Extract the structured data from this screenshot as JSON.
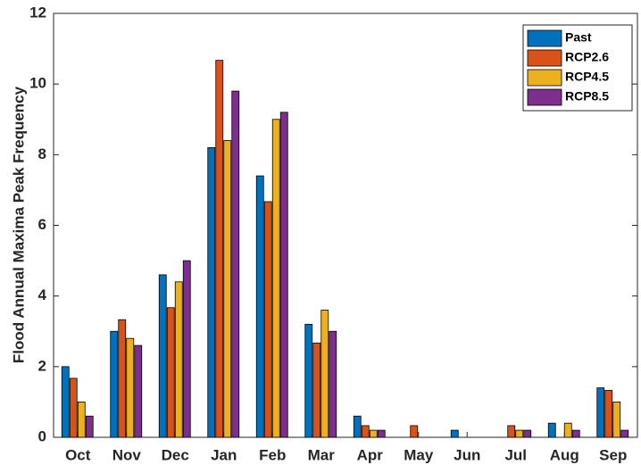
{
  "chart_data": {
    "type": "bar",
    "y_label": "Flood Annual Maxima Peak Frequency",
    "categories": [
      "Oct",
      "Nov",
      "Dec",
      "Jan",
      "Feb",
      "Mar",
      "Apr",
      "May",
      "Jun",
      "Jul",
      "Aug",
      "Sep"
    ],
    "series": [
      {
        "name": "Past",
        "color": "#0072bd",
        "values": [
          2.0,
          3.0,
          4.6,
          8.2,
          7.4,
          3.2,
          0.6,
          0,
          0.2,
          0,
          0.4,
          1.4
        ]
      },
      {
        "name": "RCP2.6",
        "color": "#d95319",
        "values": [
          1.67,
          3.33,
          3.67,
          10.67,
          6.67,
          2.67,
          0.33,
          0.33,
          0,
          0.33,
          0,
          1.33
        ]
      },
      {
        "name": "RCP4.5",
        "color": "#edb120",
        "values": [
          1.0,
          2.8,
          4.4,
          8.4,
          9.0,
          3.6,
          0.2,
          0,
          0,
          0.2,
          0.4,
          1.0
        ]
      },
      {
        "name": "RCP8.5",
        "color": "#7e2f8e",
        "values": [
          0.6,
          2.6,
          5.0,
          9.8,
          9.2,
          3.0,
          0.2,
          0,
          0,
          0.2,
          0.2,
          0.2
        ]
      }
    ],
    "ylim": [
      0,
      12
    ],
    "yticks": [
      0,
      2,
      4,
      6,
      8,
      10,
      12
    ],
    "legend": "upper-right"
  }
}
